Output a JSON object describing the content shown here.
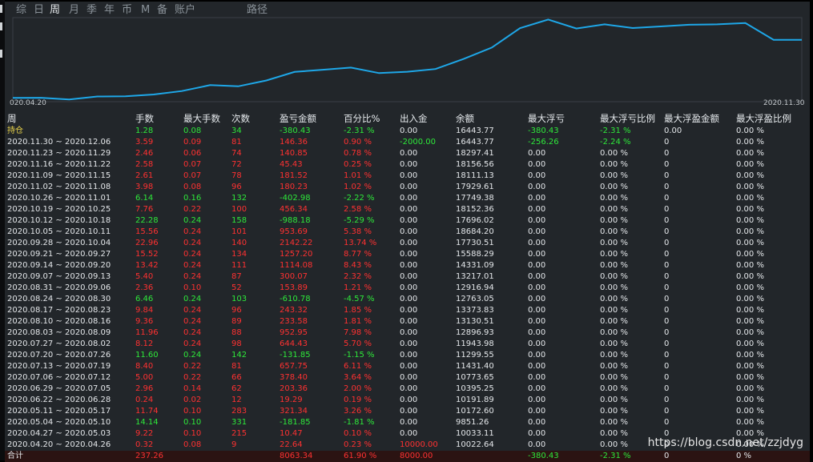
{
  "tabs": [
    {
      "label": "综"
    },
    {
      "label": "日"
    },
    {
      "label": "周",
      "active": true
    },
    {
      "label": "月"
    },
    {
      "label": "季"
    },
    {
      "label": "年"
    },
    {
      "label": "币"
    },
    {
      "label": "M"
    },
    {
      "label": "备"
    },
    {
      "label": "账户"
    },
    {
      "label": "路径"
    }
  ],
  "chart": {
    "x_start_label": "020.04.20",
    "x_end_label": "2020.11.30",
    "line_color": "#1ea7e8",
    "values": [
      10022.64,
      10033.11,
      9851.26,
      10172.6,
      10191.89,
      10395.25,
      10773.65,
      11431.4,
      11299.55,
      11943.98,
      12896.93,
      13130.51,
      13373.83,
      12763.05,
      12916.94,
      13217.01,
      14331.09,
      15588.29,
      17730.51,
      18684.2,
      17696.02,
      18152.36,
      17749.38,
      17929.61,
      18111.13,
      18156.56,
      18297.41,
      16443.77,
      16443.77
    ]
  },
  "table": {
    "headers": [
      "周",
      "手数",
      "最大手数",
      "次数",
      "盈亏金额",
      "百分比%",
      "出入金",
      "余额",
      "最大浮亏",
      "最大浮亏比例",
      "最大浮盈金额",
      "最大浮盈比例"
    ],
    "holding": {
      "label": "持仓",
      "hands": "1.28",
      "max_hands": "0.08",
      "count": "34",
      "pnl": "-380.43",
      "pct": "-2.31 %",
      "flow": "0.00",
      "balance": "16443.77",
      "max_float_loss": "-380.43",
      "max_float_loss_pct": "-2.31 %",
      "max_float_gain": "0.00",
      "max_float_gain_pct": "0.00 %"
    },
    "rows": [
      {
        "week": "2020.11.30 ~ 2020.12.06",
        "hands": "3.59",
        "max_hands": "0.09",
        "count": "81",
        "pnl": "146.36",
        "pct": "0.90 %",
        "flow": "-2000.00",
        "balance": "16443.77",
        "mfl": "-256.26",
        "mflp": "-2.24 %",
        "mfg": "0",
        "mfgp": "0.00 %",
        "sign": "pos",
        "flow_color": "green",
        "mfl_color": "green"
      },
      {
        "week": "2020.11.23 ~ 2020.11.29",
        "hands": "2.46",
        "max_hands": "0.06",
        "count": "74",
        "pnl": "140.85",
        "pct": "0.78 %",
        "flow": "0.00",
        "balance": "18297.41",
        "mfl": "0.00",
        "mflp": "0.00 %",
        "mfg": "0",
        "mfgp": "0.00 %",
        "sign": "pos"
      },
      {
        "week": "2020.11.16 ~ 2020.11.22",
        "hands": "2.58",
        "max_hands": "0.07",
        "count": "72",
        "pnl": "45.43",
        "pct": "0.25 %",
        "flow": "0.00",
        "balance": "18156.56",
        "mfl": "0.00",
        "mflp": "0.00 %",
        "mfg": "0",
        "mfgp": "0.00 %",
        "sign": "pos"
      },
      {
        "week": "2020.11.09 ~ 2020.11.15",
        "hands": "2.61",
        "max_hands": "0.07",
        "count": "78",
        "pnl": "181.52",
        "pct": "1.01 %",
        "flow": "0.00",
        "balance": "18111.13",
        "mfl": "0.00",
        "mflp": "0.00 %",
        "mfg": "0",
        "mfgp": "0.00 %",
        "sign": "pos"
      },
      {
        "week": "2020.11.02 ~ 2020.11.08",
        "hands": "3.98",
        "max_hands": "0.08",
        "count": "96",
        "pnl": "180.23",
        "pct": "1.02 %",
        "flow": "0.00",
        "balance": "17929.61",
        "mfl": "0.00",
        "mflp": "0.00 %",
        "mfg": "0",
        "mfgp": "0.00 %",
        "sign": "pos"
      },
      {
        "week": "2020.10.26 ~ 2020.11.01",
        "hands": "6.14",
        "max_hands": "0.16",
        "count": "132",
        "pnl": "-402.98",
        "pct": "-2.22 %",
        "flow": "0.00",
        "balance": "17749.38",
        "mfl": "0.00",
        "mflp": "0.00 %",
        "mfg": "0",
        "mfgp": "0.00 %",
        "sign": "neg"
      },
      {
        "week": "2020.10.19 ~ 2020.10.25",
        "hands": "7.76",
        "max_hands": "0.22",
        "count": "100",
        "pnl": "456.34",
        "pct": "2.58 %",
        "flow": "0.00",
        "balance": "18152.36",
        "mfl": "0.00",
        "mflp": "0.00 %",
        "mfg": "0",
        "mfgp": "0.00 %",
        "sign": "pos"
      },
      {
        "week": "2020.10.12 ~ 2020.10.18",
        "hands": "22.28",
        "max_hands": "0.24",
        "count": "158",
        "pnl": "-988.18",
        "pct": "-5.29 %",
        "flow": "0.00",
        "balance": "17696.02",
        "mfl": "0.00",
        "mflp": "0.00 %",
        "mfg": "0",
        "mfgp": "0.00 %",
        "sign": "neg"
      },
      {
        "week": "2020.10.05 ~ 2020.10.11",
        "hands": "15.56",
        "max_hands": "0.24",
        "count": "101",
        "pnl": "953.69",
        "pct": "5.38 %",
        "flow": "0.00",
        "balance": "18684.20",
        "mfl": "0.00",
        "mflp": "0.00 %",
        "mfg": "0",
        "mfgp": "0.00 %",
        "sign": "pos"
      },
      {
        "week": "2020.09.28 ~ 2020.10.04",
        "hands": "22.96",
        "max_hands": "0.24",
        "count": "140",
        "pnl": "2142.22",
        "pct": "13.74 %",
        "flow": "0.00",
        "balance": "17730.51",
        "mfl": "0.00",
        "mflp": "0.00 %",
        "mfg": "0",
        "mfgp": "0.00 %",
        "sign": "pos"
      },
      {
        "week": "2020.09.21 ~ 2020.09.27",
        "hands": "15.52",
        "max_hands": "0.24",
        "count": "134",
        "pnl": "1257.20",
        "pct": "8.77 %",
        "flow": "0.00",
        "balance": "15588.29",
        "mfl": "0.00",
        "mflp": "0.00 %",
        "mfg": "0",
        "mfgp": "0.00 %",
        "sign": "pos"
      },
      {
        "week": "2020.09.14 ~ 2020.09.20",
        "hands": "13.42",
        "max_hands": "0.24",
        "count": "111",
        "pnl": "1114.08",
        "pct": "8.43 %",
        "flow": "0.00",
        "balance": "14331.09",
        "mfl": "0.00",
        "mflp": "0.00 %",
        "mfg": "0",
        "mfgp": "0.00 %",
        "sign": "pos"
      },
      {
        "week": "2020.09.07 ~ 2020.09.13",
        "hands": "5.40",
        "max_hands": "0.24",
        "count": "87",
        "pnl": "300.07",
        "pct": "2.32 %",
        "flow": "0.00",
        "balance": "13217.01",
        "mfl": "0.00",
        "mflp": "0.00 %",
        "mfg": "0",
        "mfgp": "0.00 %",
        "sign": "pos"
      },
      {
        "week": "2020.08.31 ~ 2020.09.06",
        "hands": "2.36",
        "max_hands": "0.10",
        "count": "52",
        "pnl": "153.89",
        "pct": "1.21 %",
        "flow": "0.00",
        "balance": "12916.94",
        "mfl": "0.00",
        "mflp": "0.00 %",
        "mfg": "0",
        "mfgp": "0.00 %",
        "sign": "pos"
      },
      {
        "week": "2020.08.24 ~ 2020.08.30",
        "hands": "6.46",
        "max_hands": "0.24",
        "count": "103",
        "pnl": "-610.78",
        "pct": "-4.57 %",
        "flow": "0.00",
        "balance": "12763.05",
        "mfl": "0.00",
        "mflp": "0.00 %",
        "mfg": "0",
        "mfgp": "0.00 %",
        "sign": "neg"
      },
      {
        "week": "2020.08.17 ~ 2020.08.23",
        "hands": "9.84",
        "max_hands": "0.24",
        "count": "96",
        "pnl": "243.32",
        "pct": "1.85 %",
        "flow": "0.00",
        "balance": "13373.83",
        "mfl": "0.00",
        "mflp": "0.00 %",
        "mfg": "0",
        "mfgp": "0.00 %",
        "sign": "pos"
      },
      {
        "week": "2020.08.10 ~ 2020.08.16",
        "hands": "9.36",
        "max_hands": "0.24",
        "count": "89",
        "pnl": "233.58",
        "pct": "1.81 %",
        "flow": "0.00",
        "balance": "13130.51",
        "mfl": "0.00",
        "mflp": "0.00 %",
        "mfg": "0",
        "mfgp": "0.00 %",
        "sign": "pos"
      },
      {
        "week": "2020.08.03 ~ 2020.08.09",
        "hands": "11.96",
        "max_hands": "0.24",
        "count": "88",
        "pnl": "952.95",
        "pct": "7.98 %",
        "flow": "0.00",
        "balance": "12896.93",
        "mfl": "0.00",
        "mflp": "0.00 %",
        "mfg": "0",
        "mfgp": "0.00 %",
        "sign": "pos"
      },
      {
        "week": "2020.07.27 ~ 2020.08.02",
        "hands": "8.12",
        "max_hands": "0.24",
        "count": "98",
        "pnl": "644.43",
        "pct": "5.70 %",
        "flow": "0.00",
        "balance": "11943.98",
        "mfl": "0.00",
        "mflp": "0.00 %",
        "mfg": "0",
        "mfgp": "0.00 %",
        "sign": "pos"
      },
      {
        "week": "2020.07.20 ~ 2020.07.26",
        "hands": "11.60",
        "max_hands": "0.24",
        "count": "142",
        "pnl": "-131.85",
        "pct": "-1.15 %",
        "flow": "0.00",
        "balance": "11299.55",
        "mfl": "0.00",
        "mflp": "0.00 %",
        "mfg": "0",
        "mfgp": "0.00 %",
        "sign": "neg"
      },
      {
        "week": "2020.07.13 ~ 2020.07.19",
        "hands": "8.40",
        "max_hands": "0.22",
        "count": "81",
        "pnl": "657.75",
        "pct": "6.11 %",
        "flow": "0.00",
        "balance": "11431.40",
        "mfl": "0.00",
        "mflp": "0.00 %",
        "mfg": "0",
        "mfgp": "0.00 %",
        "sign": "pos"
      },
      {
        "week": "2020.07.06 ~ 2020.07.12",
        "hands": "5.00",
        "max_hands": "0.22",
        "count": "66",
        "pnl": "378.40",
        "pct": "3.64 %",
        "flow": "0.00",
        "balance": "10773.65",
        "mfl": "0.00",
        "mflp": "0.00 %",
        "mfg": "0",
        "mfgp": "0.00 %",
        "sign": "pos"
      },
      {
        "week": "2020.06.29 ~ 2020.07.05",
        "hands": "2.96",
        "max_hands": "0.14",
        "count": "62",
        "pnl": "203.36",
        "pct": "2.00 %",
        "flow": "0.00",
        "balance": "10395.25",
        "mfl": "0.00",
        "mflp": "0.00 %",
        "mfg": "0",
        "mfgp": "0.00 %",
        "sign": "pos"
      },
      {
        "week": "2020.06.22 ~ 2020.06.28",
        "hands": "0.24",
        "max_hands": "0.02",
        "count": "12",
        "pnl": "19.29",
        "pct": "0.19 %",
        "flow": "0.00",
        "balance": "10191.89",
        "mfl": "0.00",
        "mflp": "0.00 %",
        "mfg": "0",
        "mfgp": "0.00 %",
        "sign": "pos"
      },
      {
        "week": "2020.05.11 ~ 2020.05.17",
        "hands": "11.74",
        "max_hands": "0.10",
        "count": "283",
        "pnl": "321.34",
        "pct": "3.26 %",
        "flow": "0.00",
        "balance": "10172.60",
        "mfl": "0.00",
        "mflp": "0.00 %",
        "mfg": "0",
        "mfgp": "0.00 %",
        "sign": "pos"
      },
      {
        "week": "2020.05.04 ~ 2020.05.10",
        "hands": "14.14",
        "max_hands": "0.10",
        "count": "331",
        "pnl": "-181.85",
        "pct": "-1.81 %",
        "flow": "0.00",
        "balance": "9851.26",
        "mfl": "0.00",
        "mflp": "0.00 %",
        "mfg": "0",
        "mfgp": "0.00 %",
        "sign": "neg"
      },
      {
        "week": "2020.04.27 ~ 2020.05.03",
        "hands": "9.22",
        "max_hands": "0.10",
        "count": "215",
        "pnl": "10.47",
        "pct": "0.10 %",
        "flow": "0.00",
        "balance": "10033.11",
        "mfl": "0.00",
        "mflp": "0.00 %",
        "mfg": "0",
        "mfgp": "0.00 %",
        "sign": "pos"
      },
      {
        "week": "2020.04.20 ~ 2020.04.26",
        "hands": "0.32",
        "max_hands": "0.08",
        "count": "9",
        "pnl": "22.64",
        "pct": "0.23 %",
        "flow": "10000.00",
        "balance": "10022.64",
        "mfl": "0.00",
        "mflp": "0.00 %",
        "mfg": "0",
        "mfgp": "0.00 %",
        "sign": "pos",
        "flow_color": "red"
      }
    ],
    "totals": {
      "label": "合计",
      "hands": "237.26",
      "pnl": "8063.34",
      "pct": "61.90 %",
      "flow": "8000.00",
      "mfl": "-380.43",
      "mflp": "-2.31 %",
      "mfg": "0",
      "mfgp": "0 %"
    }
  },
  "watermark": "https://blog.csdn.net/zzjdyg"
}
